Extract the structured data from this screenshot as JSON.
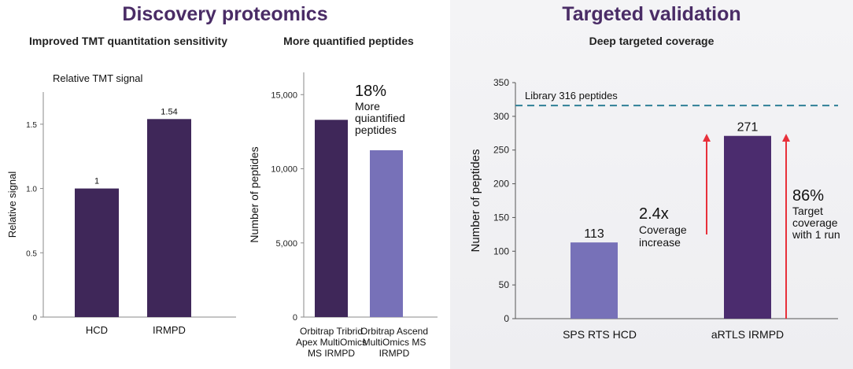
{
  "sections": {
    "left_title": "Discovery proteomics",
    "right_title": "Targeted validation"
  },
  "chart_data": [
    {
      "type": "bar",
      "title": "Improved TMT quantitation sensitivity",
      "subtitle": "Relative TMT signal",
      "ylabel": "Relative signal",
      "xlabel": "",
      "categories": [
        "HCD",
        "IRMPD"
      ],
      "values": [
        1,
        1.54
      ],
      "data_labels": [
        "1",
        "1.54"
      ],
      "ylim": [
        0,
        1.75
      ],
      "yticks": [
        0,
        0.5,
        1.0,
        1.5
      ],
      "ytick_labels": [
        "0",
        "0.5",
        "1.0",
        "1.5"
      ],
      "colors": [
        "#3f2759",
        "#3f2759"
      ],
      "grid": false
    },
    {
      "type": "bar",
      "title": "More quantified peptides",
      "ylabel": "Number of peptides",
      "xlabel": "",
      "categories": [
        [
          "Orbitrap Tribrid",
          "Apex MultiOmics",
          "MS IRMPD"
        ],
        [
          "Orbitrap Ascend",
          "MultiOmics MS",
          "IRMPD"
        ]
      ],
      "values": [
        13300,
        11250
      ],
      "ylim": [
        0,
        16500
      ],
      "yticks": [
        0,
        5000,
        10000,
        15000
      ],
      "ytick_labels": [
        "0",
        "5,000",
        "10,000",
        "15,000"
      ],
      "colors": [
        "#3f2759",
        "#7771b8"
      ],
      "annotation": {
        "value": "18%",
        "text": [
          "More",
          "quiantified",
          "peptides"
        ]
      },
      "grid": false
    },
    {
      "type": "bar",
      "title": "Deep targeted coverage",
      "ylabel": "Number of peptides",
      "xlabel": "",
      "categories": [
        "SPS RTS HCD",
        "aRTLS IRMPD"
      ],
      "values": [
        113,
        271
      ],
      "data_labels": [
        "113",
        "271"
      ],
      "ylim": [
        0,
        350
      ],
      "yticks": [
        0,
        50,
        100,
        150,
        200,
        250,
        300,
        350
      ],
      "ytick_labels": [
        "0",
        "50",
        "100",
        "150",
        "200",
        "250",
        "300",
        "350"
      ],
      "colors": [
        "#7771b8",
        "#4b2c6e"
      ],
      "reference_line": {
        "value": 316,
        "label": "Library 316 peptides",
        "color": "#2f7f97"
      },
      "annotations": [
        {
          "value": "2.4x",
          "text": [
            "Coverage",
            "increase"
          ],
          "arrow_color": "#e8303a"
        },
        {
          "value": "86%",
          "text": [
            "Target",
            "coverage",
            "with 1 run"
          ],
          "arrow_color": "#e8303a"
        }
      ],
      "grid": false
    }
  ]
}
